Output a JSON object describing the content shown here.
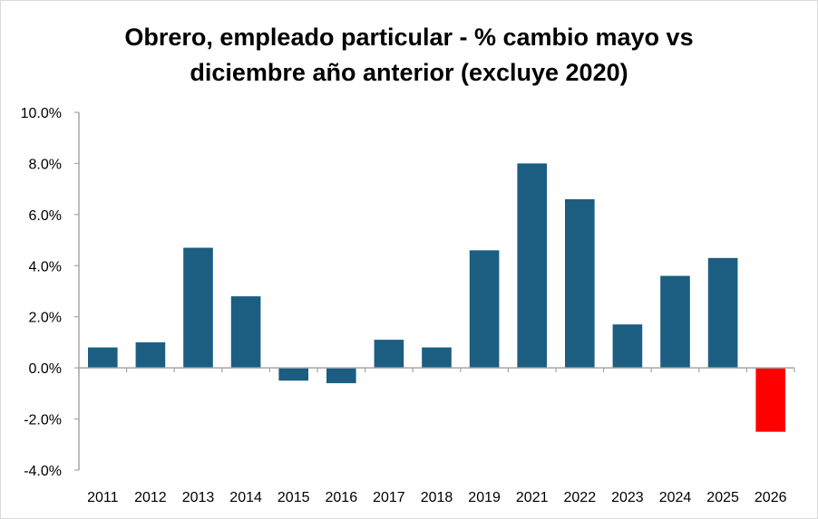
{
  "chart_data": {
    "type": "bar",
    "title_lines": [
      "Obrero, empleado particular - % cambio mayo vs",
      "diciembre año anterior (excluye 2020)"
    ],
    "xlabel": "",
    "ylabel": "",
    "categories": [
      "2011",
      "2012",
      "2013",
      "2014",
      "2015",
      "2016",
      "2017",
      "2018",
      "2019",
      "2021",
      "2022",
      "2023",
      "2024",
      "2025",
      "2026"
    ],
    "values": [
      0.8,
      1.0,
      4.7,
      2.8,
      -0.5,
      -0.6,
      1.1,
      0.8,
      4.6,
      8.0,
      6.6,
      1.7,
      3.6,
      4.3,
      -2.5
    ],
    "ylim": [
      -4.0,
      10.0
    ],
    "yticks": [
      10.0,
      8.0,
      6.0,
      4.0,
      2.0,
      0.0,
      -2.0,
      -4.0
    ],
    "ytick_labels": [
      "10.0%",
      "8.0%",
      "6.0%",
      "4.0%",
      "2.0%",
      "0.0%",
      "-2.0%",
      "-4.0%"
    ],
    "grid": false,
    "legend": "none",
    "colors": {
      "bar": "#1b5e82",
      "highlight": "#ff0000",
      "axis": "#a6a6a6"
    },
    "highlight_category": "2026"
  }
}
